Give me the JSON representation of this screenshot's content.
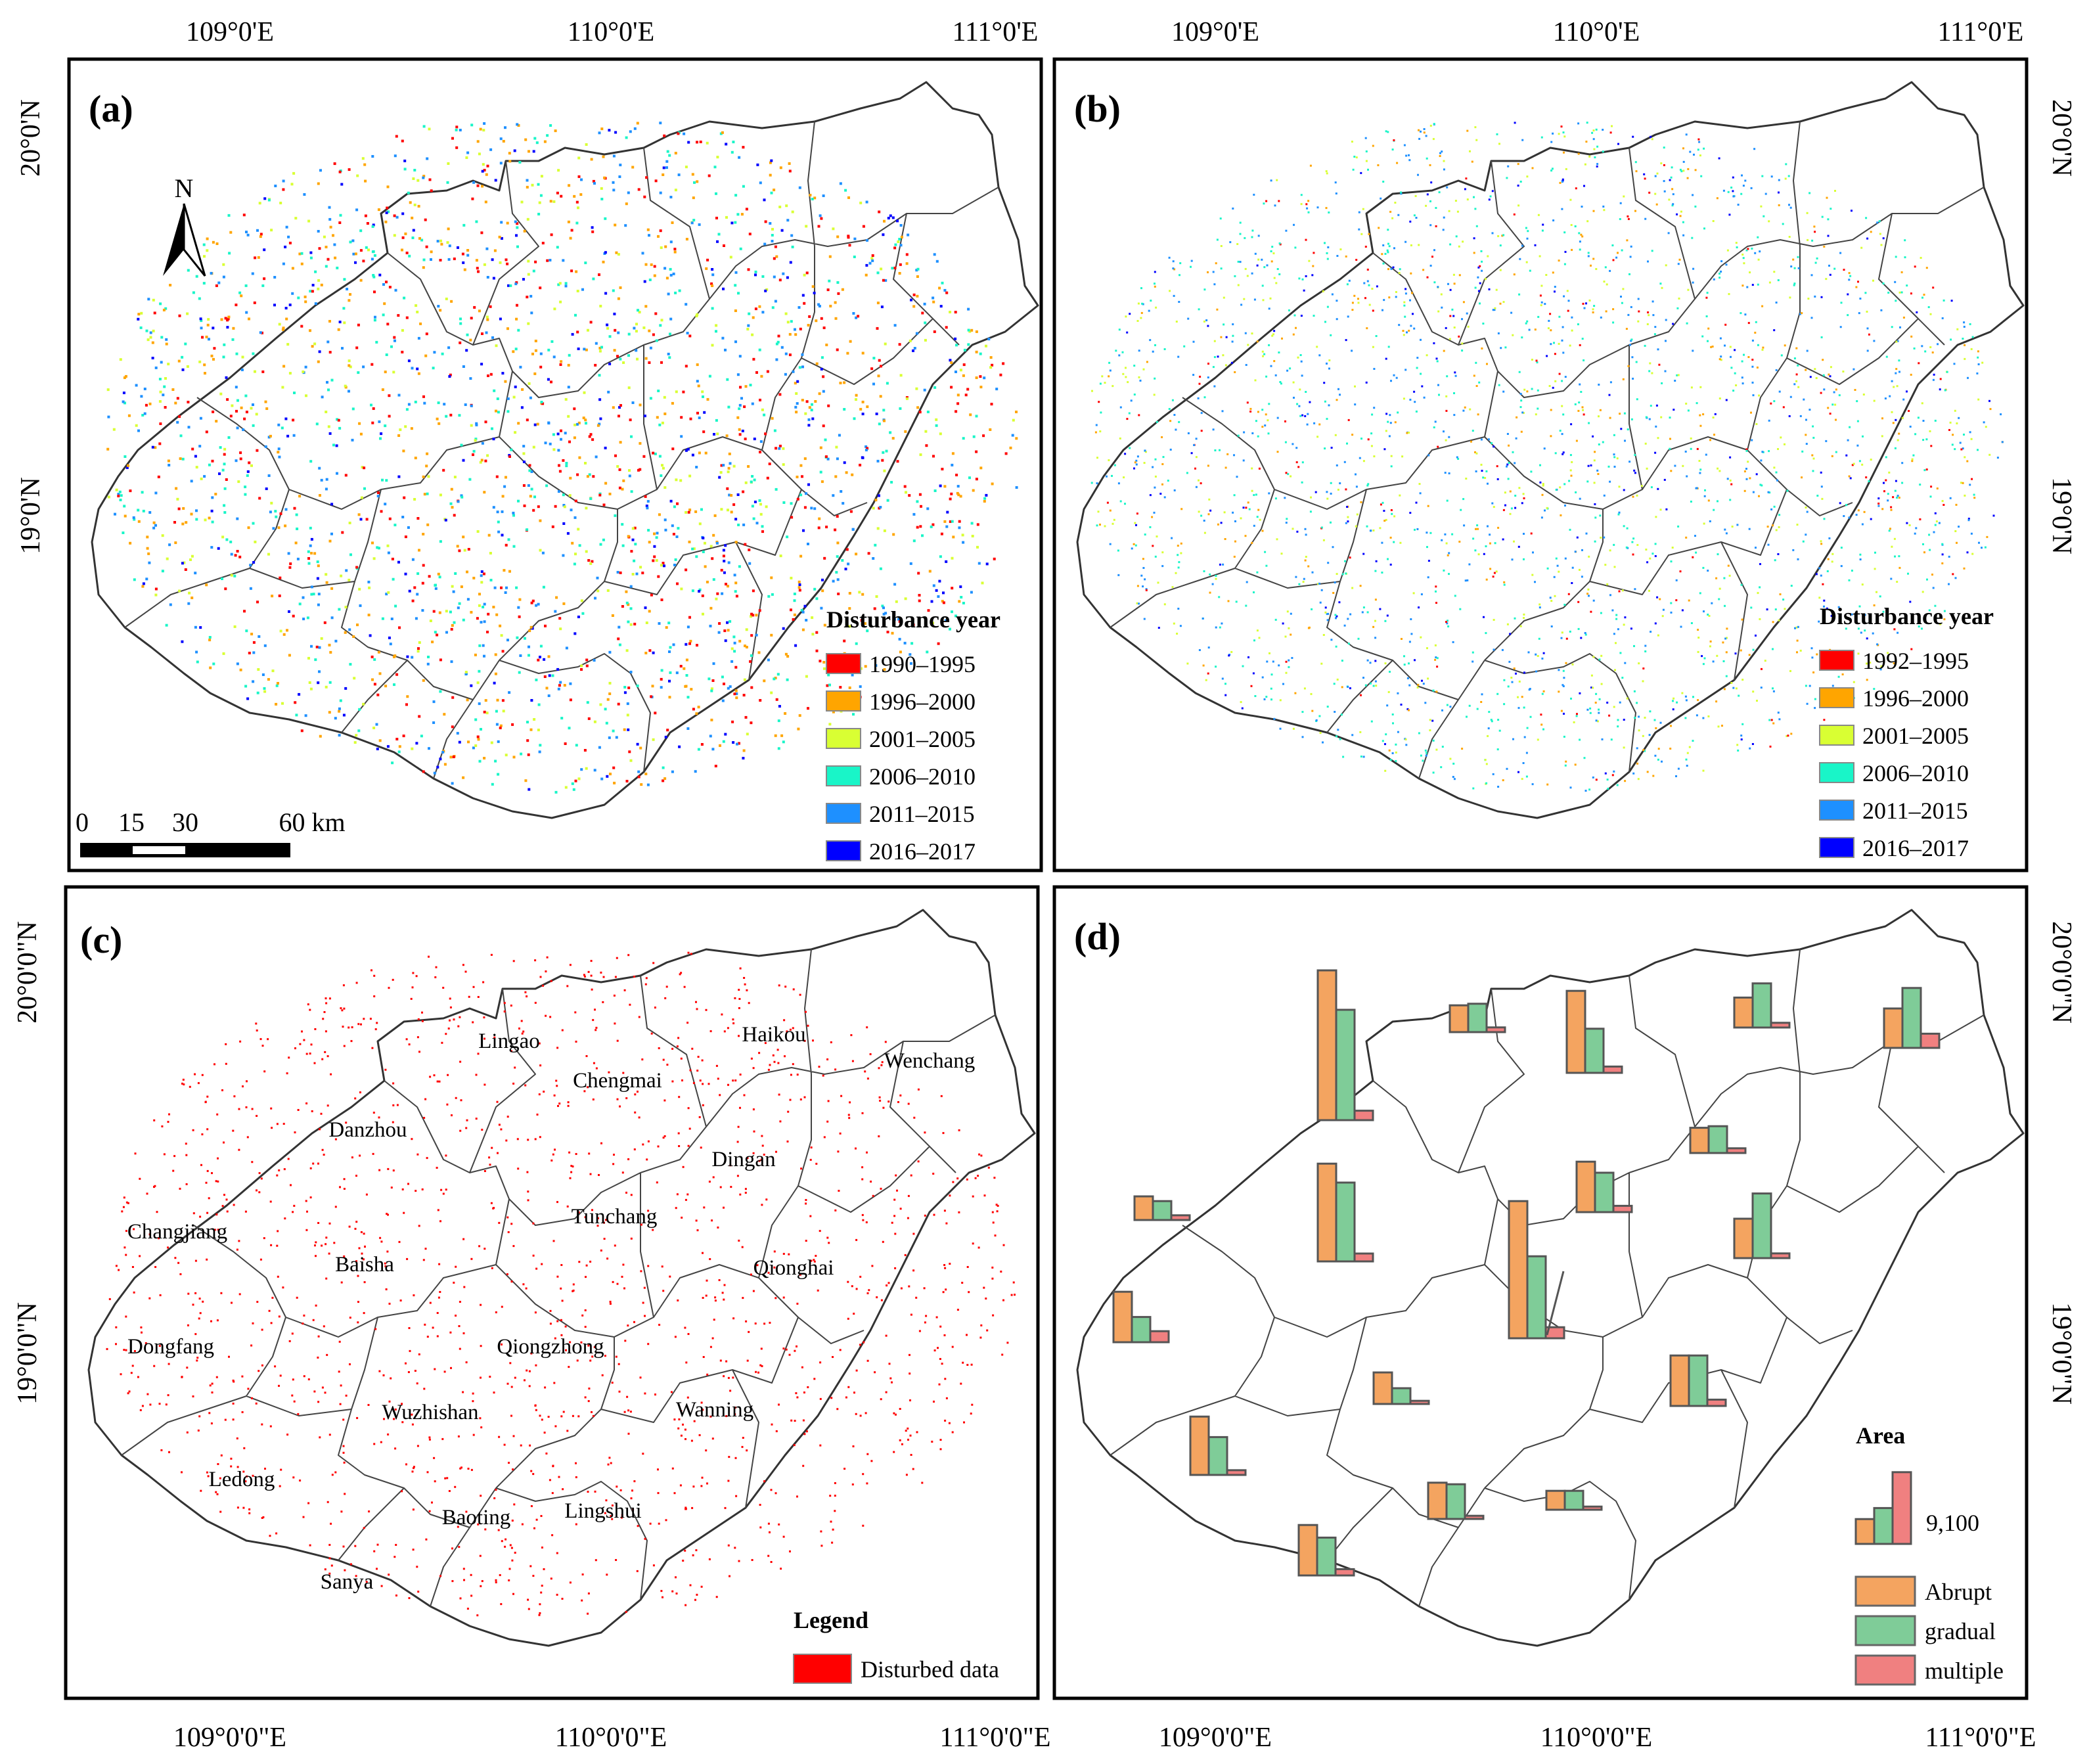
{
  "panels": {
    "a": {
      "label": "(a)",
      "legend_title": "Disturbance year",
      "legend_items": [
        {
          "label": "1990–1995",
          "color": "#ff0000"
        },
        {
          "label": "1996–2000",
          "color": "#ffa500"
        },
        {
          "label": "2001–2005",
          "color": "#d9ff33"
        },
        {
          "label": "2006–2010",
          "color": "#19f5c8"
        },
        {
          "label": "2011–2015",
          "color": "#1e90ff"
        },
        {
          "label": "2016–2017",
          "color": "#0000ff"
        }
      ],
      "north_label": "N",
      "scale_labels": [
        "0",
        "15",
        "30",
        "60 km"
      ]
    },
    "b": {
      "label": "(b)",
      "legend_title": "Disturbance year",
      "legend_items": [
        {
          "label": "1992–1995",
          "color": "#ff0000"
        },
        {
          "label": "1996–2000",
          "color": "#ffa500"
        },
        {
          "label": "2001–2005",
          "color": "#d9ff33"
        },
        {
          "label": "2006–2010",
          "color": "#19f5c8"
        },
        {
          "label": "2011–2015",
          "color": "#1e90ff"
        },
        {
          "label": "2016–2017",
          "color": "#0000ff"
        }
      ]
    },
    "c": {
      "label": "(c)",
      "legend_title": "Legend",
      "legend_item": {
        "label": "Disturbed data",
        "color": "#ff0000"
      },
      "counties": [
        "Lingao",
        "Haikou",
        "Chengmai",
        "Wenchang",
        "Danzhou",
        "Dingan",
        "Changjiang",
        "Tunchang",
        "Baisha",
        "Qionghai",
        "Dongfang",
        "Qiongzhong",
        "Wuzhishan",
        "Wanning",
        "Ledong",
        "Baoting",
        "Lingshui",
        "Sanya"
      ]
    },
    "d": {
      "label": "(d)",
      "legend_title": "Area",
      "legend_value": "9,100",
      "legend_items": [
        {
          "label": "Abrupt",
          "color": "#f4a460"
        },
        {
          "label": "gradual",
          "color": "#7fcc98"
        },
        {
          "label": "multiple",
          "color": "#f08080"
        }
      ]
    }
  },
  "axes": {
    "top_lon_ticks": [
      "109°0'E",
      "110°0'E",
      "111°0'E"
    ],
    "bottom_lon_ticks": [
      "109°0'0\"E",
      "110°0'0\"E",
      "111°0'0\"E"
    ],
    "top_lat_ticks": [
      "20°0'N",
      "19°0'N"
    ],
    "bottom_lat_ticks": [
      "20°0'0\"N",
      "19°0'0\"N"
    ]
  },
  "bar_groups": [
    {
      "county": "Lingao",
      "abrupt": 0.95,
      "gradual": 0.7,
      "multiple": 0.06
    },
    {
      "county": "Haikou",
      "abrupt": 0.17,
      "gradual": 0.18,
      "multiple": 0.03
    },
    {
      "county": "Chengmai",
      "abrupt": 0.52,
      "gradual": 0.28,
      "multiple": 0.04
    },
    {
      "county": "Wenchang_west",
      "abrupt": 0.19,
      "gradual": 0.28,
      "multiple": 0.03
    },
    {
      "county": "Wenchang",
      "abrupt": 0.25,
      "gradual": 0.38,
      "multiple": 0.09
    },
    {
      "county": "Dingan",
      "abrupt": 0.16,
      "gradual": 0.17,
      "multiple": 0.03
    },
    {
      "county": "Danzhou",
      "abrupt": 0.62,
      "gradual": 0.5,
      "multiple": 0.05
    },
    {
      "county": "Tunchang",
      "abrupt": 0.32,
      "gradual": 0.25,
      "multiple": 0.04
    },
    {
      "county": "Qionghai",
      "abrupt": 0.25,
      "gradual": 0.41,
      "multiple": 0.03
    },
    {
      "county": "Changjiang",
      "abrupt": 0.15,
      "gradual": 0.12,
      "multiple": 0.03
    },
    {
      "county": "Qiongzhong",
      "abrupt": 0.87,
      "gradual": 0.52,
      "multiple": 0.07
    },
    {
      "county": "Dongfang",
      "abrupt": 0.32,
      "gradual": 0.16,
      "multiple": 0.07
    },
    {
      "county": "Baisha",
      "abrupt": 0.2,
      "gradual": 0.1,
      "multiple": 0.02
    },
    {
      "county": "Wanning",
      "abrupt": 0.32,
      "gradual": 0.32,
      "multiple": 0.04
    },
    {
      "county": "Ledong",
      "abrupt": 0.37,
      "gradual": 0.24,
      "multiple": 0.03
    },
    {
      "county": "Baoting",
      "abrupt": 0.23,
      "gradual": 0.22,
      "multiple": 0.02
    },
    {
      "county": "Lingshui",
      "abrupt": 0.12,
      "gradual": 0.12,
      "multiple": 0.02
    },
    {
      "county": "Sanya",
      "abrupt": 0.32,
      "gradual": 0.24,
      "multiple": 0.04
    }
  ]
}
